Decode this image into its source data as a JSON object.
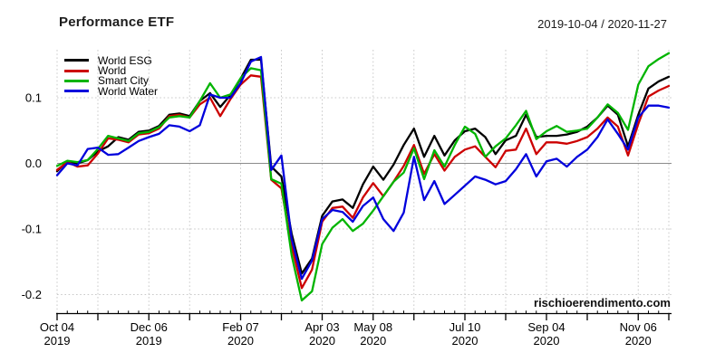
{
  "header": {
    "title": "Performance ETF",
    "date_range": "2019-10-04 / 2020-11-27"
  },
  "watermark": "rischioerendimento.com",
  "colors": {
    "background": "#ffffff",
    "grid": "#c9c9c9",
    "zero_line": "#8c8c8c",
    "axis": "#000000",
    "text": "#000000"
  },
  "chart_data": {
    "type": "line",
    "title": "Performance ETF",
    "subtitle": "2019-10-04 / 2020-11-27",
    "ylabel": "",
    "xlabel": "",
    "ylim": [
      -0.235,
      0.175
    ],
    "grid_style": "dotted",
    "legend_position": "top-left",
    "zero_line": true,
    "x_dates": [
      "2019-10-04",
      "2019-10-11",
      "2019-10-18",
      "2019-10-25",
      "2019-11-01",
      "2019-11-08",
      "2019-11-15",
      "2019-11-22",
      "2019-11-29",
      "2019-12-06",
      "2019-12-13",
      "2019-12-20",
      "2019-12-27",
      "2020-01-03",
      "2020-01-10",
      "2020-01-17",
      "2020-01-24",
      "2020-01-31",
      "2020-02-07",
      "2020-02-14",
      "2020-02-21",
      "2020-02-28",
      "2020-03-06",
      "2020-03-13",
      "2020-03-20",
      "2020-03-27",
      "2020-04-03",
      "2020-04-10",
      "2020-04-17",
      "2020-04-24",
      "2020-05-01",
      "2020-05-08",
      "2020-05-15",
      "2020-05-22",
      "2020-05-29",
      "2020-06-05",
      "2020-06-12",
      "2020-06-19",
      "2020-06-26",
      "2020-07-03",
      "2020-07-10",
      "2020-07-17",
      "2020-07-24",
      "2020-07-31",
      "2020-08-07",
      "2020-08-14",
      "2020-08-21",
      "2020-08-28",
      "2020-09-04",
      "2020-09-11",
      "2020-09-18",
      "2020-09-25",
      "2020-10-02",
      "2020-10-09",
      "2020-10-16",
      "2020-10-23",
      "2020-10-30",
      "2020-11-06",
      "2020-11-13",
      "2020-11-20",
      "2020-11-27"
    ],
    "series": [
      {
        "name": "World ESG",
        "color": "#000000",
        "values": [
          -0.012,
          0.003,
          0.0,
          0.005,
          0.018,
          0.026,
          0.04,
          0.036,
          0.048,
          0.05,
          0.057,
          0.074,
          0.076,
          0.072,
          0.095,
          0.107,
          0.086,
          0.104,
          0.129,
          0.158,
          0.158,
          -0.005,
          -0.02,
          -0.107,
          -0.168,
          -0.145,
          -0.08,
          -0.058,
          -0.055,
          -0.068,
          -0.032,
          -0.005,
          -0.025,
          -0.002,
          0.028,
          0.053,
          0.01,
          0.042,
          0.012,
          0.035,
          0.049,
          0.053,
          0.04,
          0.014,
          0.035,
          0.042,
          0.074,
          0.04,
          0.042,
          0.042,
          0.044,
          0.048,
          0.056,
          0.07,
          0.088,
          0.074,
          0.026,
          0.074,
          0.114,
          0.125,
          0.132
        ]
      },
      {
        "name": "World",
        "color": "#cc0000",
        "values": [
          -0.01,
          0.002,
          -0.005,
          -0.003,
          0.015,
          0.038,
          0.036,
          0.032,
          0.044,
          0.046,
          0.053,
          0.072,
          0.074,
          0.07,
          0.09,
          0.1,
          0.072,
          0.098,
          0.12,
          0.134,
          0.132,
          -0.025,
          -0.038,
          -0.126,
          -0.19,
          -0.162,
          -0.089,
          -0.068,
          -0.066,
          -0.083,
          -0.052,
          -0.03,
          -0.05,
          -0.028,
          -0.004,
          0.028,
          -0.016,
          0.014,
          -0.011,
          0.01,
          0.021,
          0.026,
          0.01,
          -0.006,
          0.019,
          0.021,
          0.053,
          0.014,
          0.032,
          0.032,
          0.03,
          0.034,
          0.04,
          0.053,
          0.07,
          0.056,
          0.012,
          0.06,
          0.102,
          0.111,
          0.118
        ]
      },
      {
        "name": "Smart City",
        "color": "#00b400",
        "values": [
          -0.004,
          0.004,
          0.002,
          0.005,
          0.022,
          0.042,
          0.038,
          0.034,
          0.046,
          0.048,
          0.055,
          0.07,
          0.072,
          0.07,
          0.095,
          0.122,
          0.1,
          0.105,
          0.13,
          0.145,
          0.142,
          -0.024,
          -0.031,
          -0.14,
          -0.209,
          -0.195,
          -0.123,
          -0.098,
          -0.085,
          -0.103,
          -0.092,
          -0.072,
          -0.05,
          -0.028,
          -0.014,
          0.023,
          -0.024,
          0.02,
          -0.005,
          0.028,
          0.056,
          0.045,
          0.01,
          0.026,
          0.038,
          0.058,
          0.08,
          0.037,
          0.049,
          0.057,
          0.048,
          0.05,
          0.053,
          0.07,
          0.09,
          0.077,
          0.051,
          0.12,
          0.148,
          0.159,
          0.168
        ]
      },
      {
        "name": "World Water",
        "color": "#0000dc",
        "values": [
          -0.018,
          0.0,
          -0.003,
          0.022,
          0.024,
          0.013,
          0.014,
          0.024,
          0.034,
          0.04,
          0.045,
          0.058,
          0.056,
          0.049,
          0.058,
          0.105,
          0.1,
          0.1,
          0.122,
          0.155,
          0.162,
          -0.01,
          0.012,
          -0.115,
          -0.176,
          -0.148,
          -0.085,
          -0.071,
          -0.074,
          -0.089,
          -0.065,
          -0.052,
          -0.085,
          -0.103,
          -0.075,
          0.01,
          -0.056,
          -0.027,
          -0.062,
          -0.048,
          -0.034,
          -0.02,
          -0.025,
          -0.032,
          -0.027,
          -0.009,
          0.014,
          -0.02,
          0.003,
          0.007,
          -0.005,
          0.01,
          0.021,
          0.04,
          0.067,
          0.045,
          0.021,
          0.07,
          0.088,
          0.088,
          0.085
        ]
      }
    ],
    "yticks": [
      {
        "value": 0.1,
        "label": "0.1"
      },
      {
        "value": 0.0,
        "label": "0.0"
      },
      {
        "value": -0.1,
        "label": "-0.1"
      },
      {
        "value": -0.2,
        "label": "-0.2"
      }
    ],
    "xticks_major": [
      {
        "index": 0,
        "label_line1": "Oct 04",
        "label_line2": "2019"
      },
      {
        "index": 4
      },
      {
        "index": 9,
        "label_line1": "Dec 06",
        "label_line2": "2019"
      },
      {
        "index": 13
      },
      {
        "index": 18,
        "label_line1": "Feb 07",
        "label_line2": "2020"
      },
      {
        "index": 22
      },
      {
        "index": 26,
        "label_line1": "Apr 03",
        "label_line2": "2020"
      },
      {
        "index": 31,
        "label_line1": "May 08",
        "label_line2": "2020"
      },
      {
        "index": 35
      },
      {
        "index": 40,
        "label_line1": "Jul 10",
        "label_line2": "2020"
      },
      {
        "index": 44
      },
      {
        "index": 48,
        "label_line1": "Sep 04",
        "label_line2": "2020"
      },
      {
        "index": 52
      },
      {
        "index": 57,
        "label_line1": "Nov 06",
        "label_line2": "2020"
      },
      {
        "index": 60
      }
    ]
  }
}
